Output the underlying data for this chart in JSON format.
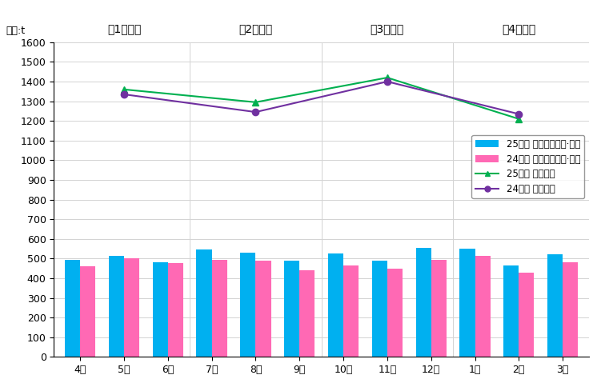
{
  "months": [
    "4月",
    "5月",
    "6月",
    "7月",
    "8月",
    "9月",
    "10月",
    "11月",
    "12月",
    "1月",
    "2月",
    "3月"
  ],
  "bar_25": [
    495,
    515,
    480,
    545,
    530,
    490,
    525,
    490,
    555,
    550,
    465,
    520
  ],
  "bar_24": [
    460,
    500,
    475,
    495,
    490,
    440,
    465,
    450,
    495,
    515,
    430,
    480
  ],
  "line_25_group": [
    null,
    1360,
    null,
    null,
    1295,
    null,
    null,
    1420,
    null,
    null,
    1210,
    null
  ],
  "line_24_group": [
    null,
    1335,
    null,
    null,
    1245,
    null,
    null,
    1400,
    null,
    null,
    1235,
    null
  ],
  "bar_color_25": "#00B0F0",
  "bar_color_24": "#FF69B4",
  "line_color_25": "#00B050",
  "line_color_24": "#7030A0",
  "quarter_labels": [
    "第1四半期",
    "第2四半期",
    "第3四半期",
    "第4四半期"
  ],
  "q_centers": [
    1,
    4,
    7,
    10
  ],
  "ylim": [
    0,
    1600
  ],
  "yticks": [
    0,
    100,
    200,
    300,
    400,
    500,
    600,
    700,
    800,
    900,
    1000,
    1100,
    1200,
    1300,
    1400,
    1500,
    1600
  ],
  "unit_label": "単位:t",
  "legend_labels": [
    "25年度 ステーション·拠点",
    "24年度 ステーション·拠点",
    "25年度 集団回収",
    "24年度 集団回収"
  ],
  "axis_fontsize": 9,
  "bar_width": 0.35
}
